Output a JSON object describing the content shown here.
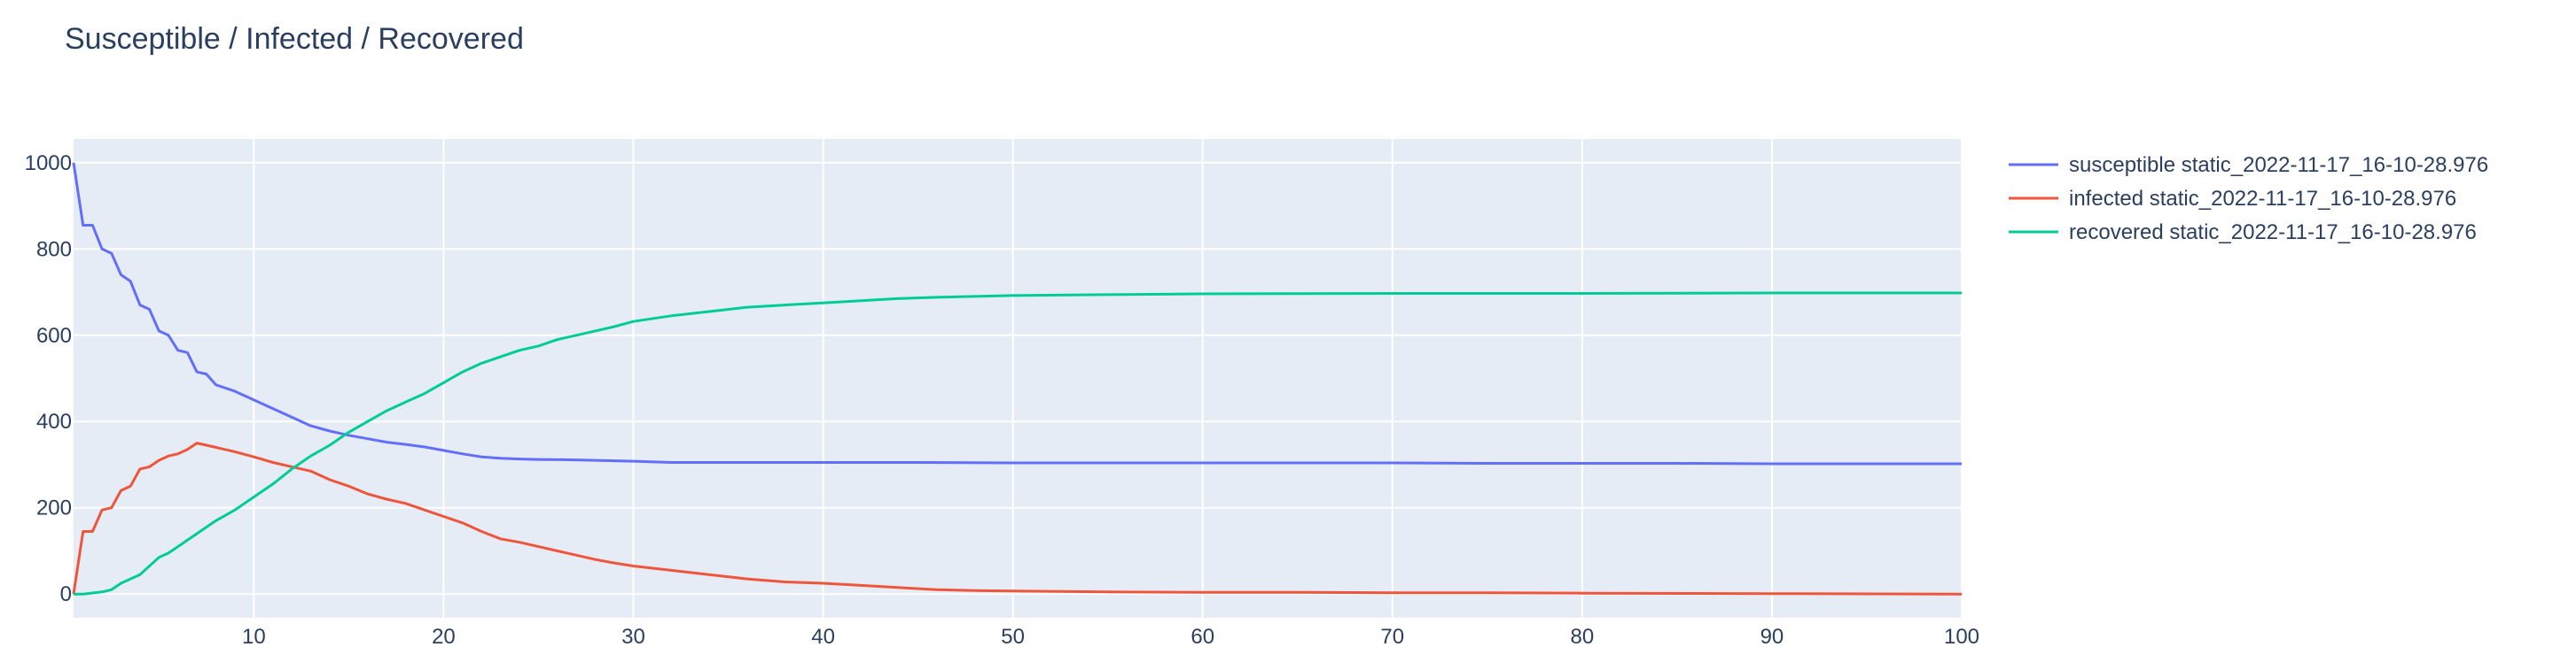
{
  "chart_data": {
    "type": "line",
    "title": "Susceptible / Infected / Recovered",
    "xlabel": "",
    "ylabel": "",
    "xlim": [
      0.5,
      100
    ],
    "ylim": [
      -55,
      1055
    ],
    "x_ticks": [
      10,
      20,
      30,
      40,
      50,
      60,
      70,
      80,
      90,
      100
    ],
    "y_ticks": [
      0,
      200,
      400,
      600,
      800,
      1000
    ],
    "grid": true,
    "legend_position": "top-right",
    "series": [
      {
        "name": "susceptible static_2022-11-17_16-10-28.976",
        "color": "#636efa",
        "x": [
          0.5,
          1,
          1.5,
          2,
          2.5,
          3,
          3.5,
          4,
          4.5,
          5,
          5.5,
          6,
          6.5,
          7,
          7.5,
          8,
          9,
          10,
          11,
          12,
          13,
          14,
          15,
          16,
          17,
          18,
          19,
          20,
          21,
          22,
          23,
          24,
          25,
          27,
          30,
          32,
          35,
          40,
          45,
          50,
          55,
          60,
          65,
          70,
          75,
          80,
          85,
          90,
          95,
          100
        ],
        "values": [
          1000,
          855,
          855,
          800,
          790,
          740,
          725,
          670,
          660,
          610,
          600,
          565,
          560,
          515,
          510,
          485,
          470,
          450,
          430,
          410,
          390,
          378,
          368,
          360,
          352,
          347,
          341,
          333,
          325,
          318,
          315,
          313,
          312,
          311,
          308,
          305,
          305,
          305,
          305,
          304,
          304,
          304,
          304,
          304,
          303,
          303,
          303,
          302,
          302,
          302
        ]
      },
      {
        "name": "infected static_2022-11-17_16-10-28.976",
        "color": "#ef553b",
        "x": [
          0.5,
          1,
          1.5,
          2,
          2.5,
          3,
          3.5,
          4,
          4.5,
          5,
          5.5,
          6,
          6.5,
          7,
          7.5,
          8,
          9,
          10,
          11,
          12,
          13,
          14,
          15,
          16,
          17,
          18,
          19,
          20,
          21,
          22,
          23,
          24,
          25,
          26,
          27,
          28,
          29,
          30,
          32,
          34,
          36,
          38,
          40,
          42,
          44,
          46,
          48,
          50,
          55,
          60,
          65,
          70,
          75,
          80,
          90,
          100
        ],
        "values": [
          0,
          145,
          145,
          195,
          200,
          240,
          250,
          290,
          295,
          310,
          320,
          325,
          335,
          350,
          345,
          340,
          330,
          318,
          305,
          295,
          285,
          265,
          250,
          232,
          220,
          210,
          195,
          180,
          165,
          145,
          128,
          120,
          110,
          100,
          90,
          80,
          72,
          65,
          55,
          45,
          35,
          28,
          25,
          20,
          15,
          10,
          8,
          7,
          5,
          4,
          4,
          3,
          3,
          2,
          1,
          0
        ]
      },
      {
        "name": "recovered static_2022-11-17_16-10-28.976",
        "color": "#00cc96",
        "x": [
          0.5,
          1,
          2,
          2.5,
          3,
          3.5,
          4,
          4.5,
          5,
          5.5,
          6,
          6.5,
          7,
          7.5,
          8,
          9,
          10,
          11,
          12,
          13,
          14,
          15,
          16,
          17,
          18,
          19,
          20,
          21,
          22,
          23,
          24,
          25,
          26,
          27,
          28,
          29,
          30,
          32,
          34,
          36,
          38,
          40,
          42,
          44,
          46,
          48,
          50,
          55,
          60,
          70,
          80,
          90,
          100
        ],
        "values": [
          0,
          0,
          5,
          10,
          25,
          35,
          45,
          65,
          85,
          95,
          110,
          125,
          140,
          155,
          170,
          195,
          225,
          255,
          290,
          320,
          345,
          375,
          400,
          425,
          445,
          465,
          490,
          515,
          535,
          550,
          565,
          575,
          590,
          600,
          610,
          620,
          632,
          645,
          655,
          665,
          670,
          675,
          680,
          685,
          688,
          690,
          692,
          694,
          696,
          697,
          697,
          698,
          698
        ]
      }
    ]
  }
}
